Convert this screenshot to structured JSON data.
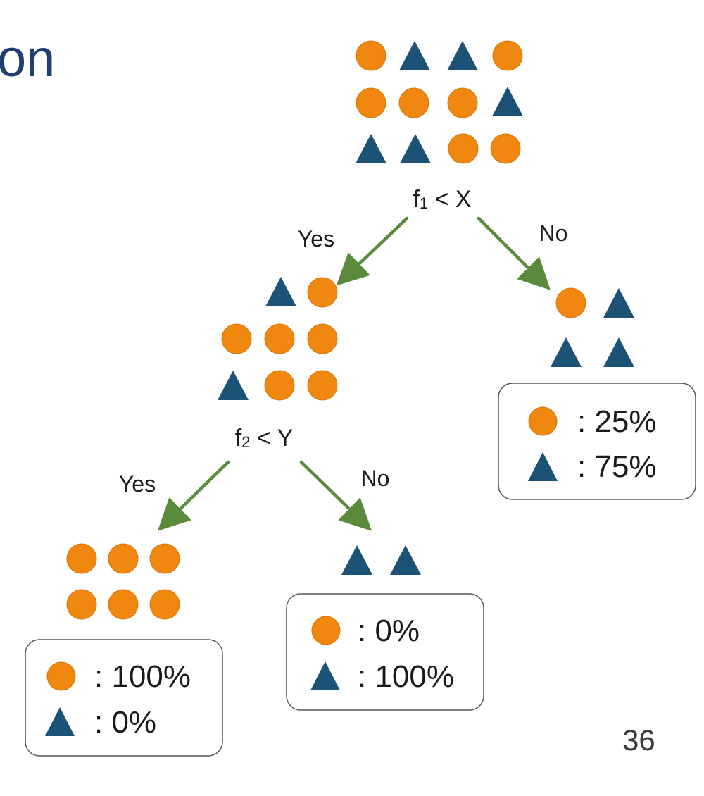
{
  "title_fragment": "on",
  "page_number": "36",
  "colors": {
    "circle_class": "#f0870f",
    "triangle_class": "#1d5277",
    "arrow": "#5a8a3c",
    "title": "#1f3f73"
  },
  "icons": {
    "circle_class": "orange-circle-icon",
    "triangle_class": "blue-triangle-icon"
  },
  "tree": {
    "root": {
      "split_label": {
        "f": "f",
        "sub": "1",
        "op": " < ",
        "var": "X"
      },
      "counts": {
        "circle": 7,
        "triangle": 5
      },
      "yes_label": "Yes",
      "no_label": "No"
    },
    "left_child": {
      "split_label": {
        "f": "f",
        "sub": "2",
        "op": " < ",
        "var": "Y"
      },
      "counts": {
        "circle": 6,
        "triangle": 2
      },
      "yes_label": "Yes",
      "no_label": "No"
    },
    "right_leaf": {
      "counts": {
        "circle": 1,
        "triangle": 3
      },
      "circle_pct": ": 25%",
      "triangle_pct": ": 75%"
    },
    "left_left_leaf": {
      "counts": {
        "circle": 6,
        "triangle": 0
      },
      "circle_pct": ": 100%",
      "triangle_pct": ": 0%"
    },
    "left_right_leaf": {
      "counts": {
        "circle": 0,
        "triangle": 2
      },
      "circle_pct": ": 0%",
      "triangle_pct": ": 100%"
    }
  }
}
